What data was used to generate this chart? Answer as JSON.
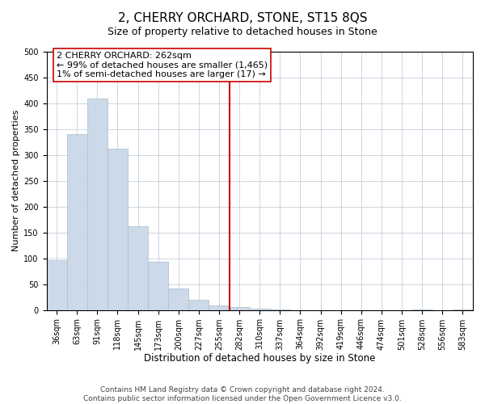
{
  "title": "2, CHERRY ORCHARD, STONE, ST15 8QS",
  "subtitle": "Size of property relative to detached houses in Stone",
  "xlabel": "Distribution of detached houses by size in Stone",
  "ylabel": "Number of detached properties",
  "bar_labels": [
    "36sqm",
    "63sqm",
    "91sqm",
    "118sqm",
    "145sqm",
    "173sqm",
    "200sqm",
    "227sqm",
    "255sqm",
    "282sqm",
    "310sqm",
    "337sqm",
    "364sqm",
    "392sqm",
    "419sqm",
    "446sqm",
    "474sqm",
    "501sqm",
    "528sqm",
    "556sqm",
    "583sqm"
  ],
  "bar_heights": [
    97,
    341,
    410,
    312,
    162,
    93,
    42,
    19,
    8,
    5,
    2,
    1,
    0,
    0,
    0,
    0,
    0,
    0,
    1,
    0,
    1
  ],
  "bar_color": "#ccd9e8",
  "bar_edge_color": "#a8becc",
  "vline_x": 8.5,
  "vline_color": "#cc0000",
  "annotation_line1": "2 CHERRY ORCHARD: 262sqm",
  "annotation_line2": "← 99% of detached houses are smaller (1,465)",
  "annotation_line3": "1% of semi-detached houses are larger (17) →",
  "annotation_box_color": "#ffffff",
  "annotation_box_edge": "#cc0000",
  "ylim": [
    0,
    500
  ],
  "yticks": [
    0,
    50,
    100,
    150,
    200,
    250,
    300,
    350,
    400,
    450,
    500
  ],
  "background_color": "#ffffff",
  "grid_color": "#c8d0dc",
  "footer_text": "Contains HM Land Registry data © Crown copyright and database right 2024.\nContains public sector information licensed under the Open Government Licence v3.0.",
  "title_fontsize": 11,
  "subtitle_fontsize": 9,
  "xlabel_fontsize": 8.5,
  "ylabel_fontsize": 8,
  "tick_fontsize": 7,
  "annotation_fontsize": 8,
  "footer_fontsize": 6.5
}
